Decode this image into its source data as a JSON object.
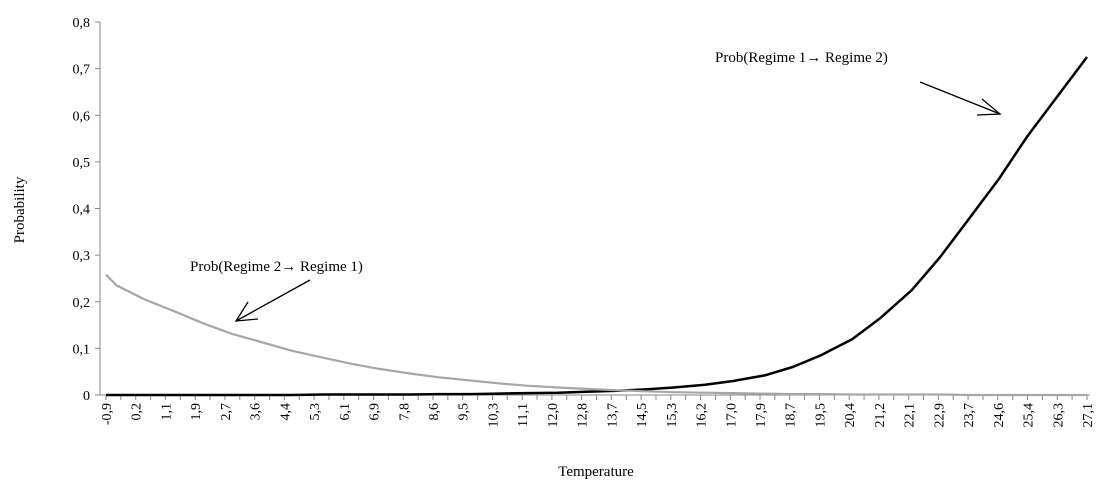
{
  "chart_data": {
    "type": "line",
    "ylabel": "Probability",
    "xlabel": "Temperature",
    "ylim": [
      0,
      0.8
    ],
    "yticks": [
      "0",
      "0,1",
      "0,2",
      "0,3",
      "0,4",
      "0,5",
      "0,6",
      "0,7",
      "0,8"
    ],
    "x_tick_labels": [
      "-0,9",
      "0,2",
      "1,1",
      "1,9",
      "2,7",
      "3,6",
      "4,4",
      "5,3",
      "6,1",
      "6,9",
      "7,8",
      "8,6",
      "9,5",
      "10,3",
      "11,1",
      "12,0",
      "12,8",
      "13,7",
      "14,5",
      "15,3",
      "16,2",
      "17,0",
      "17,9",
      "18,7",
      "19,5",
      "20,4",
      "21,2",
      "22,1",
      "22,9",
      "23,7",
      "24,6",
      "25,4",
      "26,3",
      "27,1"
    ],
    "grid": false,
    "series": [
      {
        "name": "Prob(Regime 1→ Regime 2)",
        "color": "#000000",
        "x": [
          -0.9,
          0.2,
          1.1,
          1.9,
          2.7,
          3.6,
          4.4,
          5.3,
          6.1,
          6.9,
          7.8,
          8.6,
          9.5,
          10.3,
          11.1,
          12.0,
          12.8,
          13.7,
          14.5,
          15.3,
          16.2,
          17.0,
          17.9,
          18.7,
          19.5,
          20.4,
          21.2,
          22.1,
          22.9,
          23.7,
          24.6,
          25.4,
          26.3,
          27.1
        ],
        "values": [
          0.0,
          0.0,
          0.0,
          0.0,
          0.0,
          0.0,
          0.0,
          0.001,
          0.001,
          0.001,
          0.001,
          0.002,
          0.002,
          0.003,
          0.004,
          0.005,
          0.007,
          0.009,
          0.012,
          0.016,
          0.022,
          0.03,
          0.042,
          0.06,
          0.085,
          0.12,
          0.165,
          0.225,
          0.295,
          0.375,
          0.465,
          0.555,
          0.645,
          0.725
        ]
      },
      {
        "name": "Prob(Regime 2→  Regime 1)",
        "color": "#a6a6a6",
        "x": [
          -0.9,
          -0.6,
          0.2,
          1.1,
          1.9,
          2.7,
          3.6,
          4.4,
          5.3,
          6.1,
          6.9,
          7.8,
          8.6,
          9.5,
          10.3,
          11.1,
          12.0,
          12.8,
          13.7,
          14.5,
          15.3,
          16.2,
          17.0,
          17.9,
          18.7,
          19.5,
          20.4,
          21.2,
          22.1,
          22.9,
          23.7,
          24.6,
          25.4,
          26.3,
          27.1
        ],
        "values": [
          0.258,
          0.235,
          0.205,
          0.178,
          0.153,
          0.131,
          0.112,
          0.095,
          0.08,
          0.067,
          0.056,
          0.046,
          0.038,
          0.031,
          0.025,
          0.02,
          0.016,
          0.013,
          0.01,
          0.008,
          0.006,
          0.005,
          0.004,
          0.003,
          0.002,
          0.002,
          0.001,
          0.001,
          0.001,
          0.001,
          0.0,
          0.0,
          0.0,
          0.0,
          0.0
        ]
      }
    ],
    "annotations": [
      {
        "text": "Prob(Regime 1→ Regime 2)",
        "series": 0
      },
      {
        "text": "Prob(Regime 2→  Regime 1)",
        "series": 1
      }
    ]
  }
}
